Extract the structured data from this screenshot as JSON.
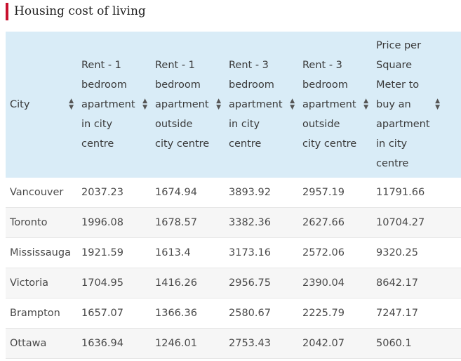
{
  "page": {
    "title": "Housing cost of living"
  },
  "table": {
    "headers": [
      "City",
      "Rent - 1 bedroom apartment in city centre",
      "Rent - 1 bedroom apartment outside city centre",
      "Rent - 3 bedroom apartment in city centre",
      "Rent - 3 bedroom apartment outside city centre",
      "Price per Square Meter to buy an apartment in city centre",
      ""
    ],
    "rows": [
      [
        "Vancouver",
        "2037.23",
        "1674.94",
        "3893.92",
        "2957.19",
        "11791.66",
        ""
      ],
      [
        "Toronto",
        "1996.08",
        "1678.57",
        "3382.36",
        "2627.66",
        "10704.27",
        ""
      ],
      [
        "Mississauga",
        "1921.59",
        "1613.4",
        "3173.16",
        "2572.06",
        "9320.25",
        ""
      ],
      [
        "Victoria",
        "1704.95",
        "1416.26",
        "2956.75",
        "2390.04",
        "8642.17",
        ""
      ],
      [
        "Brampton",
        "1657.07",
        "1366.36",
        "2580.67",
        "2225.79",
        "7247.17",
        ""
      ],
      [
        "Ottawa",
        "1636.94",
        "1246.01",
        "2753.43",
        "2042.07",
        "5060.1",
        ""
      ]
    ]
  },
  "colors": {
    "accent": "#c8102e",
    "header_bg": "#d9ecf7",
    "stripe_bg": "#f6f6f6"
  },
  "icons": {
    "sort": "sort-icon"
  }
}
